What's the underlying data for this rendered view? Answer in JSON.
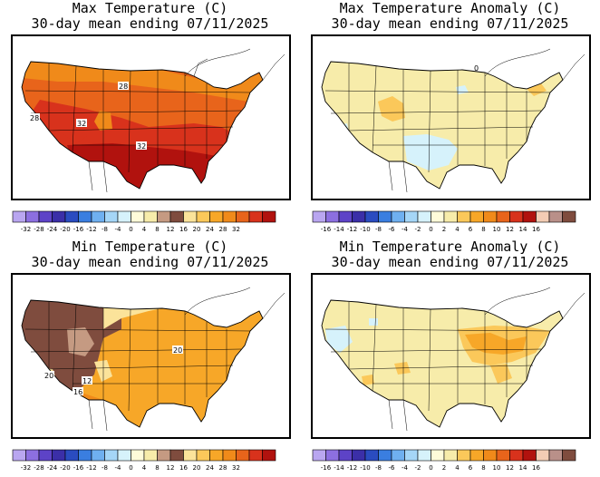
{
  "panels": [
    {
      "id": "max_temp",
      "title_line1": "Max Temperature (C)",
      "title_line2": "30-day mean ending 07/11/2025",
      "contour_labels": [
        "28",
        "28",
        "32",
        "32"
      ],
      "colorbar": {
        "colors": [
          "#b9a6f0",
          "#8c6fe0",
          "#5d43c7",
          "#3b2fa8",
          "#2a4cc0",
          "#3a7ee0",
          "#6fb0f0",
          "#a5d6f7",
          "#d6f2fb",
          "#fffbd9",
          "#f7ecaa",
          "#c59a82",
          "#7f4c3e",
          "#fbe39a",
          "#fbc85a",
          "#f7a728",
          "#f08a1a",
          "#e8641b",
          "#d8321c",
          "#b1120e"
        ],
        "labels": [
          "-32",
          "-28",
          "-24",
          "-20",
          "-16",
          "-12",
          "-8",
          "-4",
          "0",
          "4",
          "8",
          "12",
          "16",
          "20",
          "24",
          "28",
          "32"
        ]
      }
    },
    {
      "id": "max_anom",
      "title_line1": "Max Temperature Anomaly (C)",
      "title_line2": "30-day mean ending 07/11/2025",
      "contour_labels": [
        "0"
      ],
      "colorbar": {
        "colors": [
          "#b9a6f0",
          "#8c6fe0",
          "#5d43c7",
          "#3b2fa8",
          "#2a4cc0",
          "#3a7ee0",
          "#6fb0f0",
          "#a5d6f7",
          "#d6f2fb",
          "#fffbd9",
          "#f7ecaa",
          "#fbc85a",
          "#f7a728",
          "#f08a1a",
          "#e8641b",
          "#d8321c",
          "#b1120e",
          "#f3ccb4",
          "#b99089",
          "#7f4c3e"
        ],
        "labels": [
          "-16",
          "-14",
          "-12",
          "-10",
          "-8",
          "-6",
          "-4",
          "-2",
          "0",
          "2",
          "4",
          "6",
          "8",
          "10",
          "12",
          "14",
          "16"
        ]
      }
    },
    {
      "id": "min_temp",
      "title_line1": "Min Temperature (C)",
      "title_line2": "30-day mean ending 07/11/2025",
      "contour_labels": [
        "20",
        "20",
        "12",
        "16"
      ],
      "colorbar": {
        "colors": [
          "#b9a6f0",
          "#8c6fe0",
          "#5d43c7",
          "#3b2fa8",
          "#2a4cc0",
          "#3a7ee0",
          "#6fb0f0",
          "#a5d6f7",
          "#d6f2fb",
          "#fffbd9",
          "#f7ecaa",
          "#c59a82",
          "#7f4c3e",
          "#fbe39a",
          "#fbc85a",
          "#f7a728",
          "#f08a1a",
          "#e8641b",
          "#d8321c",
          "#b1120e"
        ],
        "labels": [
          "-32",
          "-28",
          "-24",
          "-20",
          "-16",
          "-12",
          "-8",
          "-4",
          "0",
          "4",
          "8",
          "12",
          "16",
          "20",
          "24",
          "28",
          "32"
        ]
      }
    },
    {
      "id": "min_anom",
      "title_line1": "Min Temperature Anomaly (C)",
      "title_line2": "30-day mean ending 07/11/2025",
      "contour_labels": [],
      "colorbar": {
        "colors": [
          "#b9a6f0",
          "#8c6fe0",
          "#5d43c7",
          "#3b2fa8",
          "#2a4cc0",
          "#3a7ee0",
          "#6fb0f0",
          "#a5d6f7",
          "#d6f2fb",
          "#fffbd9",
          "#f7ecaa",
          "#fbc85a",
          "#f7a728",
          "#f08a1a",
          "#e8641b",
          "#d8321c",
          "#b1120e",
          "#f3ccb4",
          "#b99089",
          "#7f4c3e"
        ],
        "labels": [
          "-16",
          "-14",
          "-12",
          "-10",
          "-8",
          "-6",
          "-4",
          "-2",
          "0",
          "2",
          "4",
          "6",
          "8",
          "10",
          "12",
          "14",
          "16"
        ]
      }
    }
  ]
}
